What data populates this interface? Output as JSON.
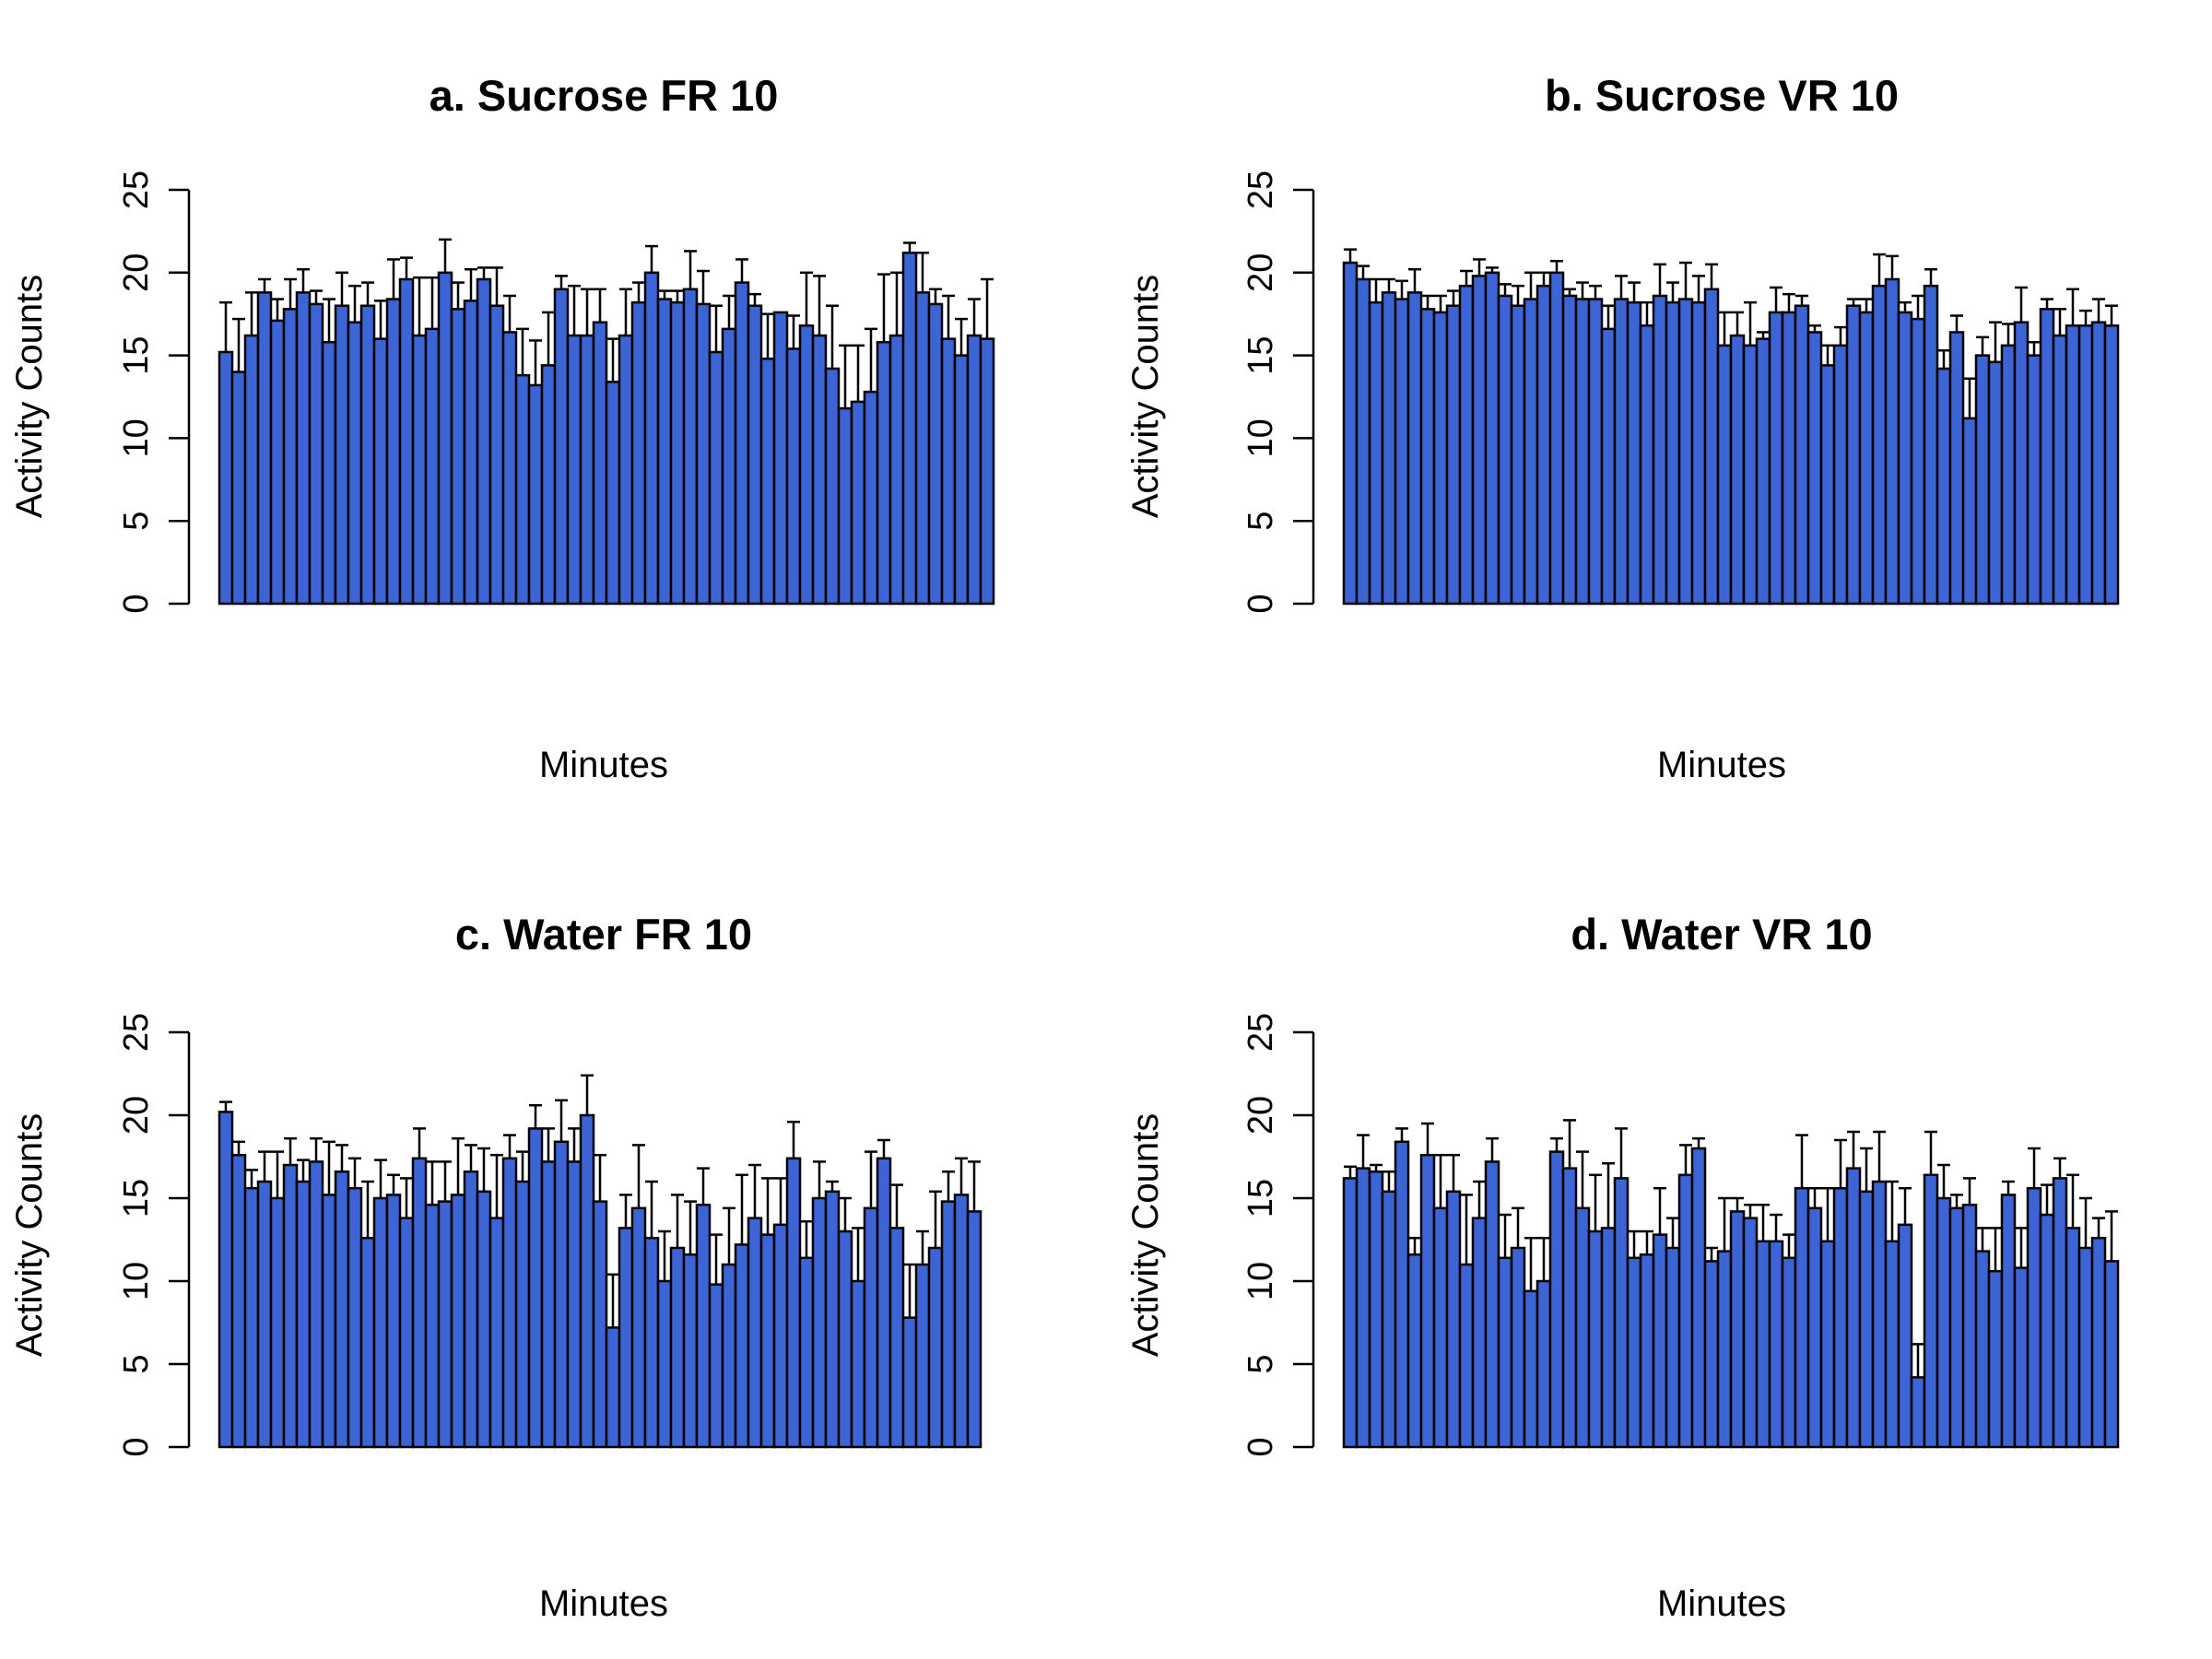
{
  "style": {
    "bar_fill": "#3d64d4",
    "bar_stroke": "#000000",
    "error_bar_color": "#000000"
  },
  "chart_data": [
    {
      "type": "bar",
      "title": "a. Sucrose FR 10",
      "xlabel": "Minutes",
      "ylabel": "Activity Counts",
      "ylim": [
        0,
        25
      ],
      "yticks": [
        "0",
        "5",
        "10",
        "15",
        "20",
        "25"
      ],
      "grid": false,
      "values": [
        15.2,
        14.0,
        16.2,
        18.8,
        17.1,
        17.8,
        18.8,
        18.1,
        15.8,
        18.0,
        17.0,
        18.0,
        16.0,
        18.4,
        19.6,
        16.2,
        16.6,
        20.0,
        17.8,
        18.3,
        19.6,
        18.0,
        16.4,
        13.8,
        13.2,
        14.4,
        19.0,
        16.2,
        16.2,
        17.0,
        13.4,
        16.2,
        18.2,
        20.0,
        18.4,
        18.2,
        19.0,
        18.1,
        15.2,
        16.6,
        19.4,
        18.0,
        14.8,
        17.6,
        15.4,
        16.8,
        16.2,
        14.2,
        11.8,
        12.2,
        12.8,
        15.8,
        16.2,
        21.2,
        18.8,
        18.1,
        16.0,
        15.0,
        16.2,
        16.0
      ],
      "errors": [
        3.0,
        3.2,
        2.6,
        0.8,
        1.3,
        1.8,
        1.4,
        0.8,
        2.6,
        2.0,
        2.2,
        1.4,
        2.3,
        2.4,
        1.3,
        3.5,
        3.1,
        2.0,
        1.6,
        1.9,
        0.7,
        2.3,
        2.2,
        2.8,
        2.7,
        3.2,
        0.8,
        3.0,
        2.8,
        2.0,
        2.6,
        2.8,
        1.2,
        1.6,
        0.5,
        0.7,
        2.3,
        2.0,
        2.8,
        2.0,
        1.4,
        0.7,
        2.7,
        0.0,
        2.0,
        3.2,
        3.6,
        3.8,
        3.8,
        3.4,
        3.8,
        4.1,
        3.8,
        0.6,
        2.4,
        0.9,
        2.6,
        2.2,
        2.2,
        3.6
      ]
    },
    {
      "type": "bar",
      "title": "b. Sucrose VR 10",
      "xlabel": "Minutes",
      "ylabel": "Activity Counts",
      "ylim": [
        0,
        25
      ],
      "yticks": [
        "0",
        "5",
        "10",
        "15",
        "20",
        "25"
      ],
      "grid": false,
      "values": [
        20.6,
        19.6,
        18.2,
        18.8,
        18.4,
        18.8,
        17.8,
        17.6,
        18.0,
        19.2,
        19.8,
        20.0,
        18.6,
        18.0,
        18.4,
        19.2,
        20.0,
        18.6,
        18.4,
        18.4,
        16.6,
        18.4,
        18.2,
        16.8,
        18.6,
        18.2,
        18.4,
        18.2,
        19.0,
        15.6,
        16.2,
        15.6,
        16.0,
        17.6,
        17.6,
        18.0,
        16.4,
        14.4,
        15.6,
        18.0,
        17.6,
        19.2,
        19.6,
        17.6,
        17.2,
        19.2,
        14.2,
        16.4,
        11.2,
        15.0,
        14.6,
        15.6,
        17.0,
        15.0,
        17.8,
        16.2,
        16.8,
        16.8,
        17.0,
        16.8
      ],
      "errors": [
        0.8,
        0.8,
        1.4,
        0.8,
        1.1,
        1.4,
        0.8,
        1.0,
        0.9,
        0.9,
        1.0,
        0.3,
        0.7,
        1.2,
        1.6,
        0.8,
        0.7,
        0.4,
        1.0,
        0.8,
        1.4,
        1.4,
        1.2,
        1.4,
        1.9,
        1.2,
        2.2,
        1.6,
        1.5,
        2.0,
        1.4,
        2.6,
        0.4,
        1.5,
        1.1,
        0.6,
        0.4,
        1.2,
        1.1,
        0.4,
        0.8,
        1.9,
        1.4,
        0.6,
        1.4,
        1.0,
        1.1,
        1.0,
        2.4,
        1.1,
        2.4,
        1.3,
        2.1,
        0.8,
        0.6,
        1.6,
        2.2,
        0.9,
        1.4,
        1.2
      ]
    },
    {
      "type": "bar",
      "title": "c. Water FR 10",
      "xlabel": "Minutes",
      "ylabel": "Activity Counts",
      "ylim": [
        0,
        25
      ],
      "yticks": [
        "0",
        "5",
        "10",
        "15",
        "20",
        "25"
      ],
      "grid": false,
      "values": [
        20.2,
        17.6,
        15.6,
        16.0,
        15.0,
        17.0,
        16.0,
        17.2,
        15.2,
        16.6,
        15.6,
        12.6,
        15.0,
        15.2,
        13.8,
        17.4,
        14.6,
        14.8,
        15.2,
        16.6,
        15.4,
        13.8,
        17.4,
        16.0,
        19.2,
        17.2,
        18.4,
        17.2,
        20.0,
        14.8,
        7.2,
        13.2,
        14.4,
        12.6,
        10.0,
        12.0,
        11.6,
        14.6,
        9.8,
        11.0,
        12.2,
        13.8,
        12.8,
        13.4,
        17.4,
        11.4,
        15.0,
        15.4,
        13.0,
        10.0,
        14.4,
        17.4,
        13.2,
        7.8,
        11.0,
        12.0,
        14.8,
        15.2,
        14.2,
        0
      ],
      "errors": [
        0.6,
        0.8,
        1.1,
        1.8,
        2.8,
        1.6,
        1.3,
        1.4,
        3.2,
        1.6,
        1.8,
        3.4,
        2.3,
        1.2,
        2.4,
        1.8,
        2.6,
        2.4,
        3.4,
        1.6,
        2.6,
        3.8,
        1.4,
        1.8,
        1.4,
        2.0,
        2.5,
        2.0,
        2.4,
        2.8,
        3.2,
        2.0,
        3.8,
        3.4,
        3.0,
        3.2,
        3.2,
        2.2,
        3.0,
        3.4,
        4.2,
        3.2,
        3.4,
        2.8,
        2.2,
        2.2,
        2.2,
        0.6,
        2.0,
        3.2,
        3.4,
        1.1,
        2.6,
        3.2,
        2.0,
        3.4,
        1.8,
        2.2,
        3.0,
        0
      ]
    },
    {
      "type": "bar",
      "title": "d. Water VR 10",
      "xlabel": "Minutes",
      "ylabel": "Activity Counts",
      "ylim": [
        0,
        25
      ],
      "yticks": [
        "0",
        "5",
        "10",
        "15",
        "20",
        "25"
      ],
      "grid": false,
      "values": [
        16.2,
        16.8,
        16.6,
        15.4,
        18.4,
        11.6,
        17.6,
        14.4,
        15.4,
        11.0,
        13.8,
        17.2,
        11.4,
        12.0,
        9.4,
        10.0,
        17.8,
        16.8,
        14.4,
        13.0,
        13.2,
        16.2,
        11.4,
        11.6,
        12.8,
        12.0,
        16.4,
        18.0,
        11.2,
        11.8,
        14.2,
        13.8,
        12.4,
        12.4,
        11.4,
        15.6,
        14.4,
        12.4,
        15.6,
        16.8,
        15.4,
        16.0,
        12.4,
        13.4,
        4.2,
        16.4,
        15.0,
        14.4,
        14.6,
        11.8,
        10.6,
        15.2,
        10.8,
        15.6,
        14.0,
        16.2,
        13.2,
        12.0,
        12.6,
        11.2
      ],
      "errors": [
        0.7,
        2.0,
        0.4,
        1.2,
        0.8,
        1.0,
        1.9,
        3.2,
        2.2,
        4.2,
        2.2,
        1.4,
        2.6,
        2.4,
        3.2,
        2.6,
        0.8,
        2.9,
        3.4,
        3.4,
        3.9,
        3.0,
        1.6,
        1.4,
        2.8,
        1.8,
        1.8,
        0.6,
        0.8,
        3.2,
        0.8,
        0.8,
        2.2,
        1.6,
        1.4,
        3.2,
        1.2,
        3.2,
        2.9,
        2.2,
        2.6,
        3.0,
        3.6,
        2.2,
        2.0,
        2.6,
        2.0,
        0.8,
        1.6,
        1.4,
        2.6,
        0.8,
        2.4,
        2.4,
        1.8,
        1.2,
        3.2,
        3.0,
        1.2,
        3.0
      ]
    }
  ]
}
